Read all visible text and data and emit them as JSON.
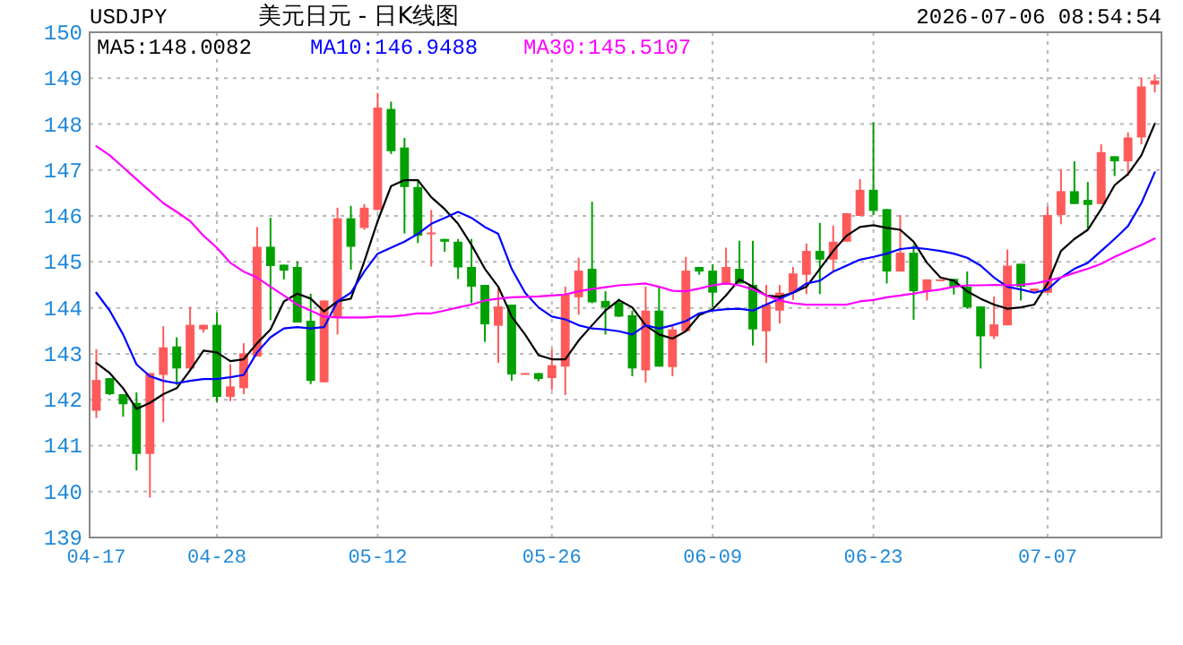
{
  "chart_data": {
    "type": "candlestick",
    "title": "美元日元 - 日K线图",
    "subtitle": "USDJPY",
    "annotations": [
      "2026-07-06 08:54:54"
    ],
    "categories": [
      "04-17",
      null,
      null,
      null,
      null,
      null,
      null,
      null,
      null,
      "04-28",
      null,
      null,
      null,
      null,
      null,
      null,
      null,
      null,
      null,
      null,
      null,
      "05-12",
      null,
      null,
      null,
      null,
      null,
      null,
      null,
      null,
      null,
      null,
      null,
      null,
      "05-26",
      null,
      null,
      null,
      null,
      null,
      null,
      null,
      null,
      null,
      null,
      null,
      "06-09",
      null,
      null,
      null,
      null,
      null,
      null,
      null,
      null,
      null,
      null,
      null,
      "06-23",
      null,
      null,
      null,
      null,
      null,
      null,
      null,
      null,
      null,
      null,
      null,
      null,
      "07-07",
      null,
      null,
      null,
      null,
      null,
      null,
      null,
      null
    ],
    "ohlc": [
      [
        141.76,
        143.1,
        141.6,
        142.43
      ],
      [
        142.47,
        142.47,
        142.1,
        142.12
      ],
      [
        142.12,
        142.12,
        141.63,
        141.9
      ],
      [
        141.93,
        142.16,
        140.46,
        140.82
      ],
      [
        140.82,
        142.58,
        139.87,
        142.58
      ],
      [
        142.54,
        143.6,
        141.51,
        143.14
      ],
      [
        143.16,
        143.36,
        142.32,
        142.68
      ],
      [
        142.68,
        144.02,
        142.64,
        143.63
      ],
      [
        143.53,
        143.63,
        143.46,
        143.63
      ],
      [
        143.63,
        143.9,
        141.95,
        142.06
      ],
      [
        142.06,
        142.77,
        141.97,
        142.29
      ],
      [
        142.25,
        143.23,
        142.12,
        143.01
      ],
      [
        142.94,
        145.76,
        142.94,
        145.33
      ],
      [
        145.33,
        145.96,
        143.73,
        144.91
      ],
      [
        144.94,
        144.94,
        144.62,
        144.81
      ],
      [
        144.89,
        145.01,
        143.68,
        143.68
      ],
      [
        143.72,
        144.31,
        142.34,
        142.41
      ],
      [
        142.38,
        144.16,
        142.38,
        144.16
      ],
      [
        143.79,
        146.18,
        143.42,
        145.95
      ],
      [
        145.95,
        146.22,
        144.83,
        145.33
      ],
      [
        145.74,
        146.26,
        145.7,
        146.18
      ],
      [
        146.13,
        148.68,
        146.13,
        148.36
      ],
      [
        148.33,
        148.49,
        147.35,
        147.41
      ],
      [
        147.49,
        147.7,
        145.62,
        146.63
      ],
      [
        146.63,
        146.8,
        145.41,
        145.57
      ],
      [
        145.62,
        146.13,
        144.9,
        145.64
      ],
      [
        145.5,
        145.5,
        145.22,
        145.44
      ],
      [
        145.44,
        145.5,
        144.63,
        144.88
      ],
      [
        144.89,
        145.5,
        144.1,
        144.46
      ],
      [
        144.5,
        144.5,
        143.26,
        143.64
      ],
      [
        143.61,
        144.42,
        142.8,
        144.03
      ],
      [
        144.07,
        144.07,
        142.41,
        142.55
      ],
      [
        142.57,
        142.58,
        142.57,
        142.58
      ],
      [
        142.58,
        142.58,
        142.4,
        142.45
      ],
      [
        142.47,
        143.1,
        142.21,
        142.75
      ],
      [
        142.72,
        144.46,
        142.1,
        144.29
      ],
      [
        144.23,
        145.09,
        143.85,
        144.81
      ],
      [
        144.85,
        146.31,
        144.1,
        144.12
      ],
      [
        144.15,
        144.36,
        143.42,
        144.01
      ],
      [
        144.11,
        144.2,
        143.8,
        143.81
      ],
      [
        143.84,
        143.94,
        142.51,
        142.68
      ],
      [
        142.64,
        144.46,
        142.37,
        143.94
      ],
      [
        143.94,
        144.46,
        142.72,
        142.72
      ],
      [
        142.71,
        143.62,
        142.51,
        143.53
      ],
      [
        143.49,
        145.11,
        143.49,
        144.81
      ],
      [
        144.89,
        144.89,
        144.72,
        144.79
      ],
      [
        144.81,
        144.95,
        144.01,
        144.33
      ],
      [
        144.5,
        145.31,
        144.5,
        144.89
      ],
      [
        144.85,
        145.46,
        144.53,
        144.53
      ],
      [
        144.5,
        145.46,
        143.18,
        143.53
      ],
      [
        143.49,
        144.5,
        142.8,
        144.07
      ],
      [
        143.94,
        144.5,
        143.66,
        144.33
      ],
      [
        144.33,
        144.89,
        144.17,
        144.75
      ],
      [
        144.72,
        145.4,
        144.3,
        145.24
      ],
      [
        145.24,
        145.85,
        144.3,
        145.05
      ],
      [
        145.05,
        145.79,
        144.79,
        145.44
      ],
      [
        145.44,
        146.06,
        145.44,
        146.06
      ],
      [
        146.0,
        146.8,
        146.0,
        146.57
      ],
      [
        146.57,
        148.04,
        146.02,
        146.11
      ],
      [
        146.15,
        146.15,
        144.53,
        144.79
      ],
      [
        144.79,
        146.02,
        144.79,
        145.2
      ],
      [
        145.2,
        145.37,
        143.74,
        144.36
      ],
      [
        144.36,
        144.62,
        144.16,
        144.62
      ],
      [
        144.61,
        144.62,
        144.61,
        144.62
      ],
      [
        144.63,
        144.63,
        144.29,
        144.46
      ],
      [
        144.46,
        144.79,
        143.98,
        144.01
      ],
      [
        144.03,
        144.03,
        142.68,
        143.38
      ],
      [
        143.38,
        144.25,
        143.32,
        143.64
      ],
      [
        143.62,
        145.27,
        143.62,
        144.92
      ],
      [
        144.96,
        144.96,
        144.16,
        144.46
      ],
      [
        144.36,
        144.42,
        144.36,
        144.42
      ],
      [
        144.33,
        146.21,
        144.33,
        146.02
      ],
      [
        146.02,
        147.02,
        145.82,
        146.54
      ],
      [
        146.54,
        147.19,
        146.26,
        146.26
      ],
      [
        146.35,
        146.74,
        145.72,
        146.24
      ],
      [
        146.26,
        147.56,
        146.26,
        147.39
      ],
      [
        147.3,
        147.3,
        146.87,
        147.19
      ],
      [
        147.19,
        147.82,
        146.87,
        147.71
      ],
      [
        147.71,
        149.01,
        147.56,
        148.82
      ],
      [
        148.86,
        149.08,
        148.69,
        148.95
      ]
    ],
    "colors": [
      "#ff5a5a",
      "#00a000",
      "#00a000",
      "#00a000",
      "#ff5a5a",
      "#ff5a5a",
      "#00a000",
      "#ff5a5a",
      "#ff5a5a",
      "#00a000",
      "#ff5a5a",
      "#ff5a5a",
      "#ff5a5a",
      "#00a000",
      "#00a000",
      "#00a000",
      "#00a000",
      "#ff5a5a",
      "#ff5a5a",
      "#00a000",
      "#ff5a5a",
      "#ff5a5a",
      "#00a000",
      "#00a000",
      "#00a000",
      "#ff5a5a",
      "#00a000",
      "#00a000",
      "#00a000",
      "#00a000",
      "#ff5a5a",
      "#00a000",
      "#ff5a5a",
      "#00a000",
      "#ff5a5a",
      "#ff5a5a",
      "#ff5a5a",
      "#00a000",
      "#00a000",
      "#00a000",
      "#00a000",
      "#ff5a5a",
      "#00a000",
      "#ff5a5a",
      "#ff5a5a",
      "#00a000",
      "#00a000",
      "#ff5a5a",
      "#00a000",
      "#00a000",
      "#ff5a5a",
      "#ff5a5a",
      "#ff5a5a",
      "#ff5a5a",
      "#00a000",
      "#ff5a5a",
      "#ff5a5a",
      "#ff5a5a",
      "#00a000",
      "#00a000",
      "#ff5a5a",
      "#00a000",
      "#ff5a5a",
      "#ff5a5a",
      "#00a000",
      "#00a000",
      "#00a000",
      "#ff5a5a",
      "#ff5a5a",
      "#00a000",
      "#ff5a5a",
      "#ff5a5a",
      "#ff5a5a",
      "#00a000",
      "#00a000",
      "#ff5a5a",
      "#00a000",
      "#ff5a5a",
      "#ff5a5a",
      "#ff5a5a"
    ],
    "series": [
      {
        "name": "MA5:148.0082",
        "type": "line",
        "color": "#000000",
        "values": [
          142.8,
          142.58,
          142.25,
          141.8,
          141.93,
          142.12,
          142.25,
          142.64,
          143.07,
          143.03,
          142.84,
          142.88,
          143.23,
          143.53,
          144.14,
          144.31,
          144.2,
          143.92,
          144.14,
          144.2,
          145.01,
          145.89,
          146.65,
          146.78,
          146.78,
          146.41,
          146.15,
          145.83,
          145.37,
          144.85,
          144.46,
          143.81,
          143.42,
          142.97,
          142.88,
          142.88,
          143.29,
          143.62,
          143.94,
          144.17,
          144.01,
          143.62,
          143.42,
          143.33,
          143.49,
          143.84,
          143.97,
          144.27,
          144.62,
          144.46,
          144.27,
          144.24,
          144.33,
          144.46,
          144.85,
          145.24,
          145.57,
          145.76,
          145.8,
          145.74,
          145.7,
          145.44,
          144.98,
          144.66,
          144.59,
          144.36,
          144.2,
          144.07,
          143.98,
          144.01,
          144.07,
          144.53,
          145.24,
          145.5,
          145.7,
          146.15,
          146.67,
          146.91,
          147.32,
          148.01
        ]
      },
      {
        "name": "MA10:146.9488",
        "type": "line",
        "color": "#0000ff",
        "values": [
          144.33,
          143.94,
          143.42,
          142.77,
          142.51,
          142.41,
          142.36,
          142.41,
          142.45,
          142.45,
          142.49,
          142.54,
          143.03,
          143.36,
          143.55,
          143.58,
          143.55,
          143.58,
          144.14,
          144.33,
          144.79,
          145.18,
          145.31,
          145.44,
          145.61,
          145.83,
          145.96,
          146.09,
          145.96,
          145.76,
          145.61,
          144.85,
          144.33,
          144.01,
          143.81,
          143.75,
          143.62,
          143.55,
          143.53,
          143.49,
          143.42,
          143.62,
          143.55,
          143.62,
          143.71,
          143.88,
          143.94,
          143.97,
          143.98,
          143.94,
          144.07,
          144.2,
          144.33,
          144.53,
          144.59,
          144.79,
          144.92,
          145.05,
          145.11,
          145.18,
          145.28,
          145.31,
          145.28,
          145.24,
          145.18,
          145.09,
          144.92,
          144.66,
          144.46,
          144.4,
          144.33,
          144.4,
          144.66,
          144.85,
          144.98,
          145.24,
          145.5,
          145.78,
          146.28,
          146.95
        ]
      },
      {
        "name": "MA30:145.5107",
        "type": "line",
        "color": "#ff00ff",
        "values": [
          147.52,
          147.32,
          147.06,
          146.8,
          146.54,
          146.28,
          146.09,
          145.89,
          145.57,
          145.31,
          144.98,
          144.79,
          144.66,
          144.46,
          144.27,
          144.07,
          143.94,
          143.81,
          143.79,
          143.79,
          143.79,
          143.81,
          143.81,
          143.84,
          143.88,
          143.88,
          143.94,
          144.01,
          144.07,
          144.16,
          144.2,
          144.23,
          144.24,
          144.25,
          144.27,
          144.29,
          144.36,
          144.41,
          144.45,
          144.49,
          144.51,
          144.53,
          144.46,
          144.37,
          144.36,
          144.42,
          144.49,
          144.53,
          144.49,
          144.4,
          144.27,
          144.16,
          144.1,
          144.07,
          144.07,
          144.07,
          144.07,
          144.14,
          144.17,
          144.23,
          144.27,
          144.31,
          144.36,
          144.4,
          144.46,
          144.49,
          144.49,
          144.5,
          144.49,
          144.5,
          144.53,
          144.59,
          144.66,
          144.76,
          144.85,
          144.96,
          145.11,
          145.24,
          145.37,
          145.51
        ]
      }
    ],
    "ylim": [
      139,
      150
    ],
    "yticks": [
      139,
      140,
      141,
      142,
      143,
      144,
      145,
      146,
      147,
      148,
      149,
      150
    ],
    "grid": true,
    "legend": "top left"
  }
}
